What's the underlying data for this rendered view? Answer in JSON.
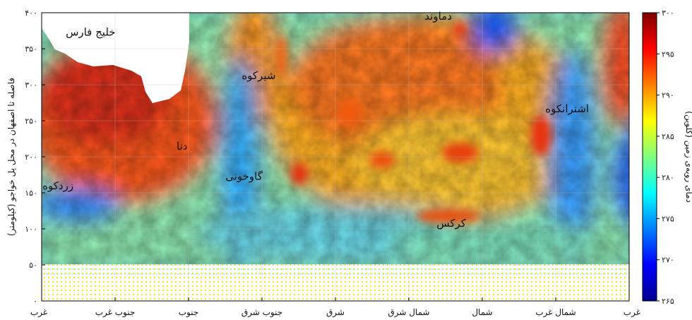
{
  "chart_data": {
    "type": "heatmap",
    "ylabel": "فاصله تا اصفهان در محل پل خواجو (کیلومتر)",
    "colorbar_label": "دمای رویه‌ی زمین (کلوین)",
    "x_tick_labels": [
      "غرب",
      "جنوب غرب",
      "جنوب",
      "جنوب شرق",
      "شرق",
      "شمال شرق",
      "شمال",
      "شمال غرب",
      "غرب"
    ],
    "y_ticks": [
      0,
      50,
      100,
      150,
      200,
      250,
      300,
      350,
      400
    ],
    "y_tick_labels": [
      "۰",
      "۵۰",
      "۱۰۰",
      "۱۵۰",
      "۲۰۰",
      "۲۵۰",
      "۳۰۰",
      "۳۵۰",
      "۴۰۰"
    ],
    "ylim": [
      0,
      400
    ],
    "colorbar_ticks": [
      265,
      270,
      275,
      280,
      285,
      290,
      295,
      300
    ],
    "colorbar_tick_labels": [
      "۲۶۵",
      "۲۷۰",
      "۲۷۵",
      "۲۸۰",
      "۲۸۵",
      "۲۹۰",
      "۲۹۵",
      "۳۰۰"
    ],
    "colorbar_range": [
      265,
      300
    ],
    "colormap": "jet",
    "grid": true,
    "annotations": [
      {
        "text": "خلیج فارس",
        "x_deg": 30,
        "y_km": 368
      },
      {
        "text": "دماوند",
        "x_deg": 243,
        "y_km": 390
      },
      {
        "text": "شیرکوه",
        "x_deg": 133,
        "y_km": 308
      },
      {
        "text": "اشترانکوه",
        "x_deg": 322,
        "y_km": 262
      },
      {
        "text": "دنا",
        "x_deg": 86,
        "y_km": 210
      },
      {
        "text": "گاوخونی",
        "x_deg": 124,
        "y_km": 168
      },
      {
        "text": "زردکوه",
        "x_deg": 10,
        "y_km": 155
      },
      {
        "text": "کرکس",
        "x_deg": 251,
        "y_km": 103
      }
    ],
    "hot_spots": [
      {
        "x_deg": 126,
        "y_km": 146,
        "value": 299
      },
      {
        "x_deg": 252,
        "y_km": 197,
        "value": 298
      },
      {
        "x_deg": 212,
        "y_km": 172,
        "value": 297
      },
      {
        "x_deg": 228,
        "y_km": 368,
        "value": 297
      },
      {
        "x_deg": 230,
        "y_km": 85,
        "value": 296
      },
      {
        "x_deg": 110,
        "y_km": 280,
        "value": 295
      },
      {
        "x_deg": 178,
        "y_km": 210,
        "value": 296
      }
    ]
  },
  "colors": {
    "background": "#ffffff",
    "axis": "#000000",
    "grid": "#bbbbbb",
    "sea": "#ffffff"
  }
}
